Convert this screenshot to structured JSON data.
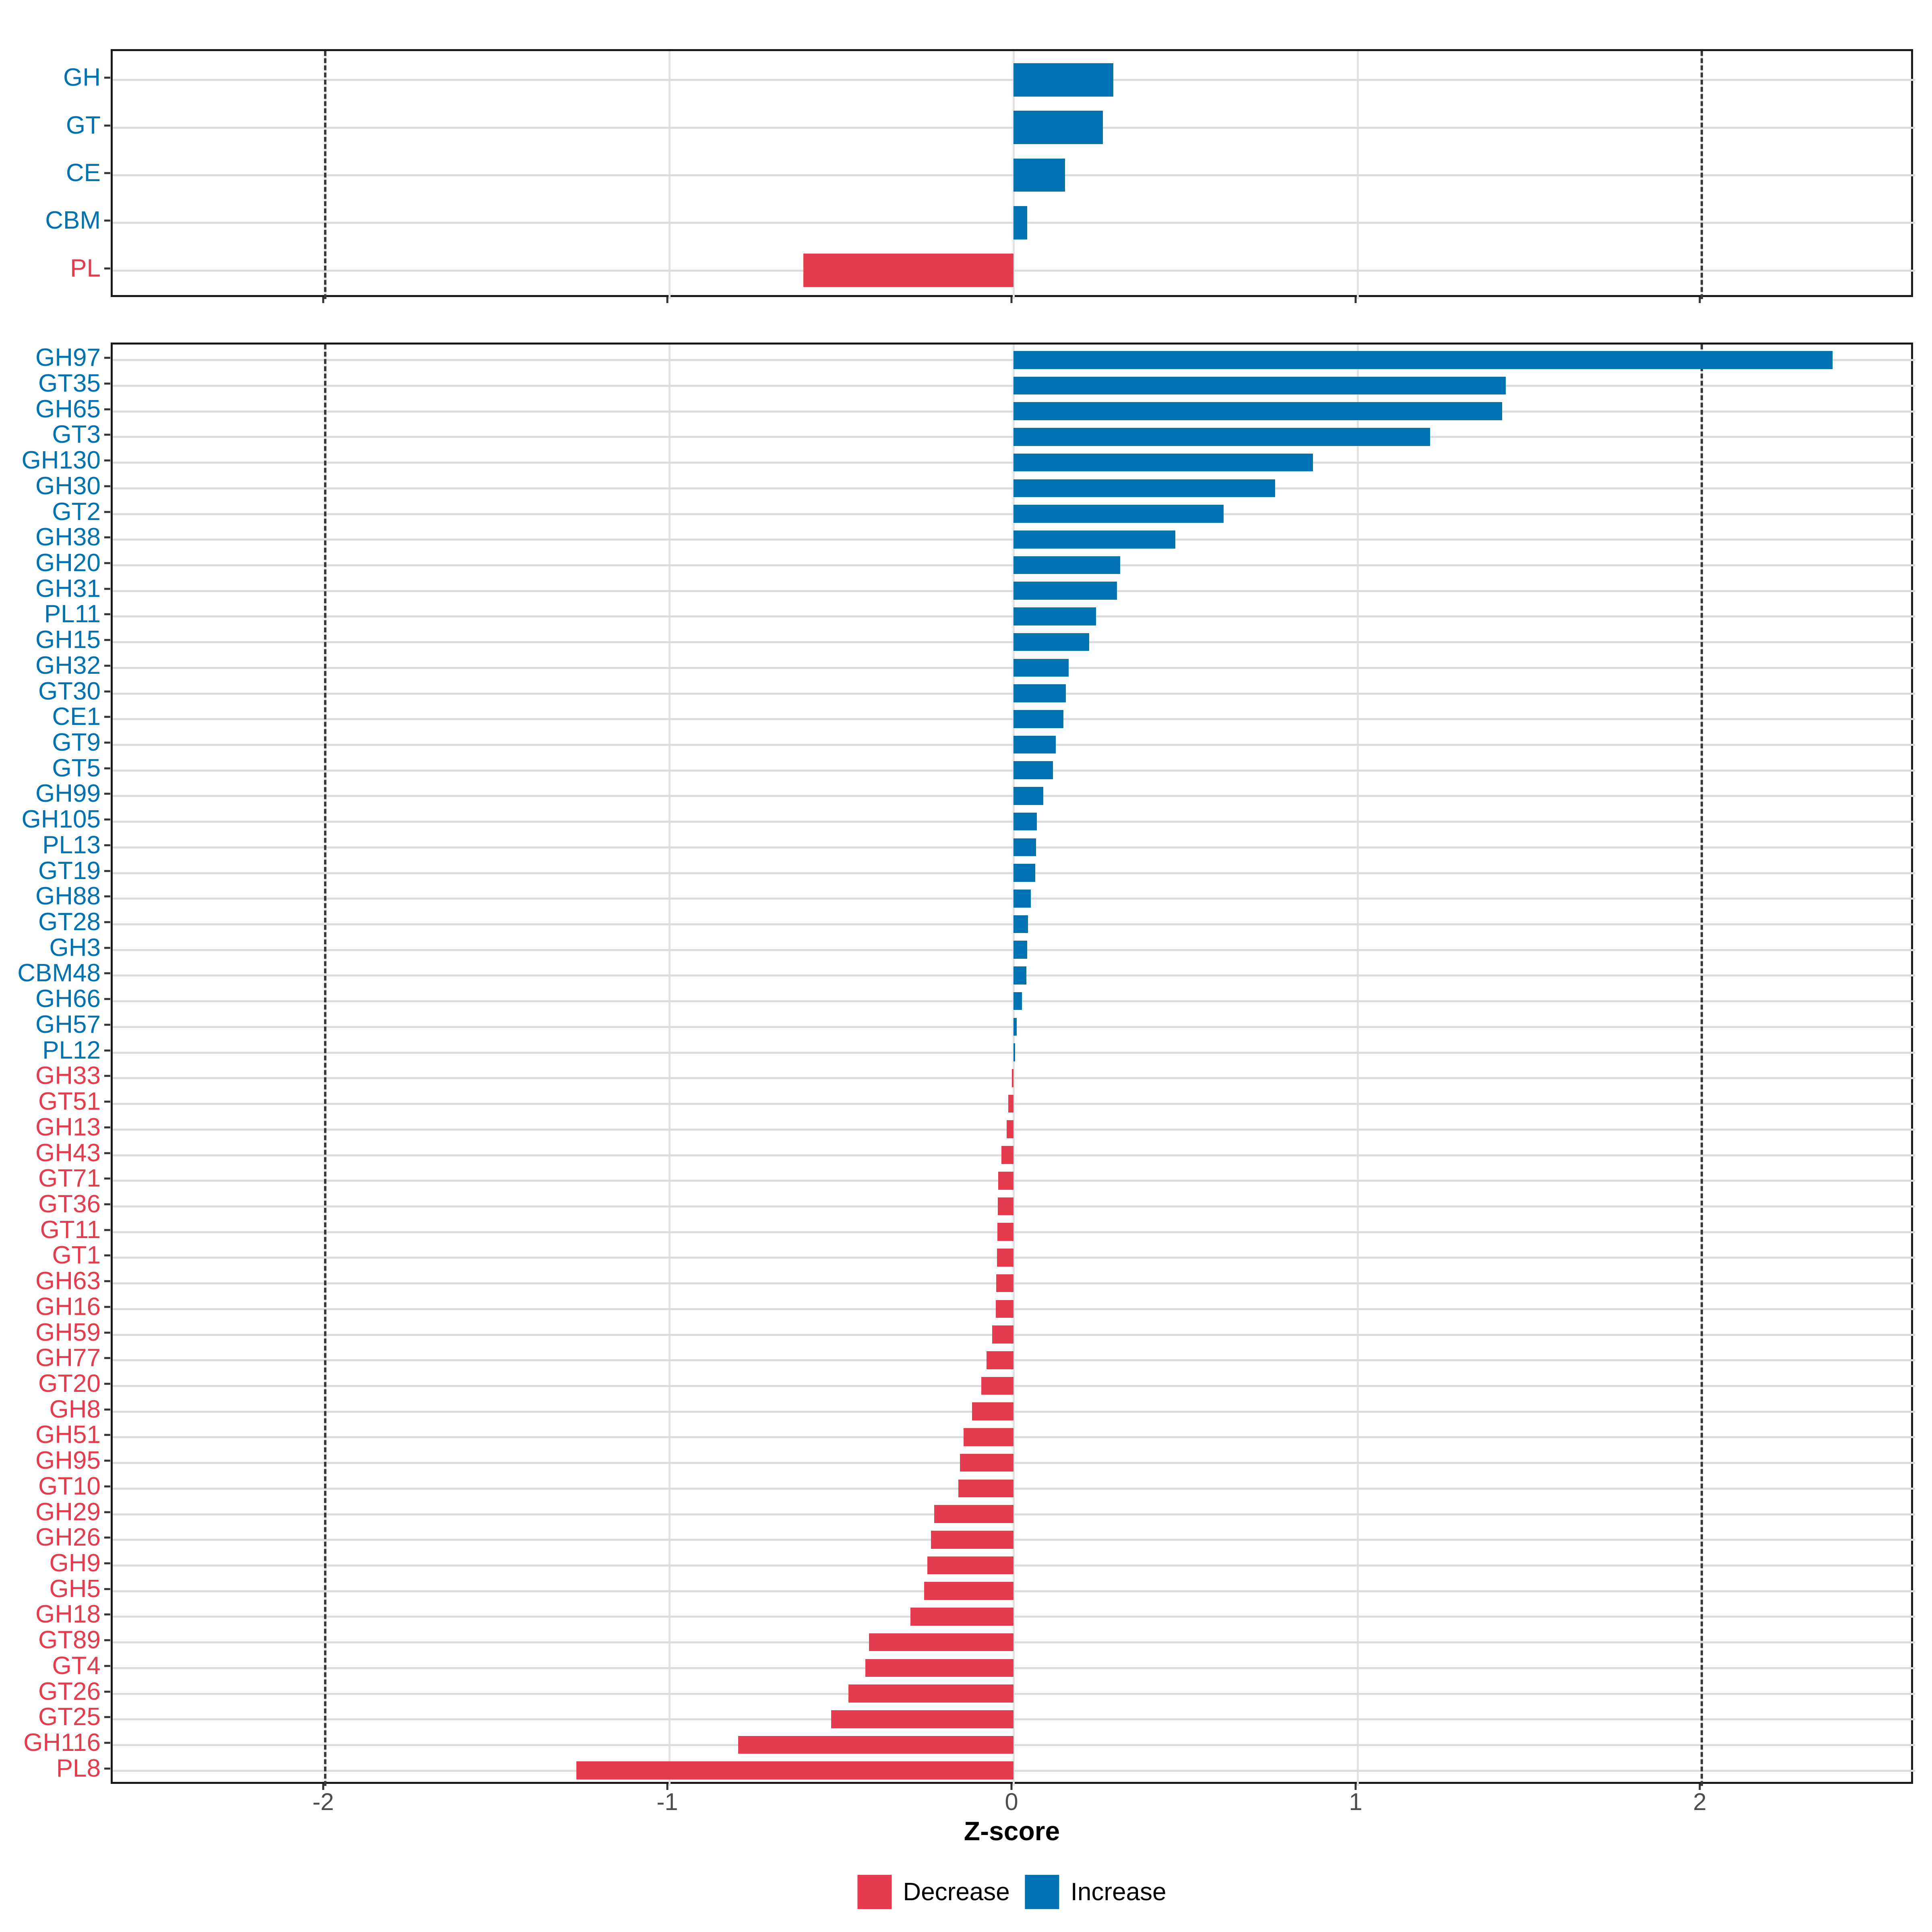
{
  "colors": {
    "increase": "#0072B2",
    "decrease": "#E63B4C",
    "grid_h": "#dbdbdb",
    "grid_v": "#e2e2e2",
    "dash_line": "#3a3a3a",
    "tick_label": "#4d4d4d",
    "panel_border": "#1a1a1a"
  },
  "x_axis": {
    "label": "Z-score",
    "ticks": [
      "-2",
      "-1",
      "0",
      "1",
      "2"
    ],
    "tick_values": [
      -2,
      -1,
      0,
      1,
      2
    ],
    "dashed_guides": [
      -2,
      2
    ],
    "xlim": [
      -2.617,
      2.62
    ]
  },
  "legend": {
    "items": [
      {
        "label": "Decrease",
        "kind": "decrease"
      },
      {
        "label": "Increase",
        "kind": "increase"
      }
    ]
  },
  "chart_data": [
    {
      "type": "bar",
      "panel": "cazyme-classes",
      "orientation": "horizontal",
      "title": "",
      "xlabel": "Z-score",
      "grid": true,
      "categories": [
        "GH",
        "GT",
        "CE",
        "CBM",
        "PL"
      ],
      "values": [
        0.29,
        0.26,
        0.15,
        0.04,
        -0.61
      ]
    },
    {
      "type": "bar",
      "panel": "cazyme-families",
      "orientation": "horizontal",
      "title": "",
      "xlabel": "Z-score",
      "grid": true,
      "categories": [
        "GH97",
        "GT35",
        "GH65",
        "GT3",
        "GH130",
        "GH30",
        "GT2",
        "GH38",
        "GH20",
        "GH31",
        "PL11",
        "GH15",
        "GH32",
        "GT30",
        "CE1",
        "GT9",
        "GT5",
        "GH99",
        "GH105",
        "PL13",
        "GT19",
        "GH88",
        "GT28",
        "GH3",
        "CBM48",
        "GH66",
        "GH57",
        "PL12",
        "GH33",
        "GT51",
        "GH13",
        "GH43",
        "GT71",
        "GT36",
        "GT11",
        "GT1",
        "GH63",
        "GH16",
        "GH59",
        "GH77",
        "GT20",
        "GH8",
        "GH51",
        "GH95",
        "GT10",
        "GH29",
        "GH26",
        "GH9",
        "GH5",
        "GH18",
        "GT89",
        "GT4",
        "GT26",
        "GT25",
        "GH116",
        "PL8"
      ],
      "values": [
        2.38,
        1.43,
        1.42,
        1.21,
        0.87,
        0.76,
        0.61,
        0.47,
        0.31,
        0.3,
        0.24,
        0.22,
        0.16,
        0.152,
        0.145,
        0.123,
        0.115,
        0.086,
        0.068,
        0.065,
        0.063,
        0.05,
        0.042,
        0.04,
        0.038,
        0.024,
        0.009,
        0.005,
        -0.005,
        -0.015,
        -0.02,
        -0.035,
        -0.045,
        -0.046,
        -0.047,
        -0.048,
        -0.05,
        -0.052,
        -0.062,
        -0.078,
        -0.093,
        -0.12,
        -0.145,
        -0.155,
        -0.16,
        -0.23,
        -0.24,
        -0.25,
        -0.26,
        -0.3,
        -0.42,
        -0.43,
        -0.48,
        -0.53,
        -0.8,
        -1.27
      ]
    }
  ]
}
